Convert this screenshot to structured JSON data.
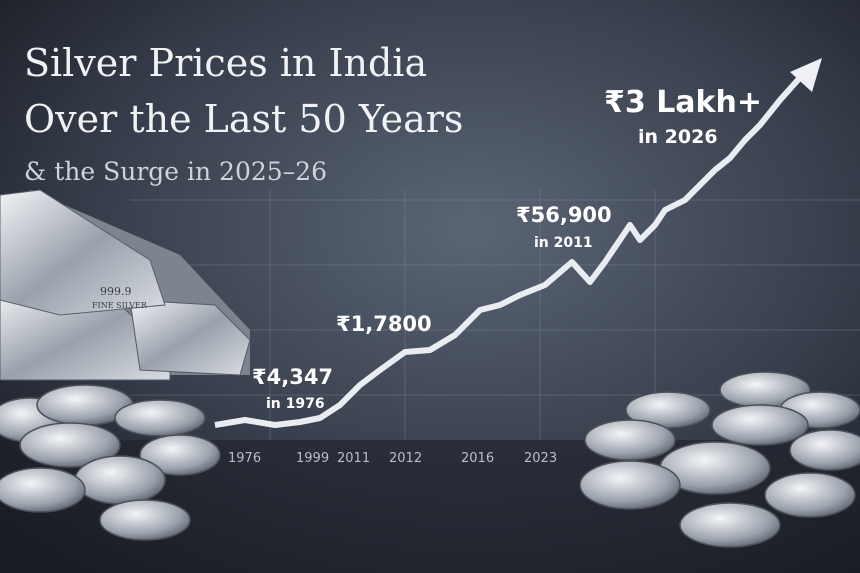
{
  "title": {
    "line1": "Silver Prices in India",
    "line2": "Over the Last 50 Years",
    "subtitle": "& the Surge in 2025–26"
  },
  "annotations": [
    {
      "label": "₹4,347",
      "note": "in 1976"
    },
    {
      "label": "₹1,7800"
    },
    {
      "label": "₹56,900",
      "note": "in 2011"
    },
    {
      "label": "₹3 Lakh+",
      "note": "in 2026"
    }
  ],
  "x_labels": [
    "1976",
    "1999",
    "2011",
    "2012",
    "2016",
    "2023"
  ],
  "bar_stamp": {
    "purity": "999.9",
    "text": "FINE SILVER"
  }
}
